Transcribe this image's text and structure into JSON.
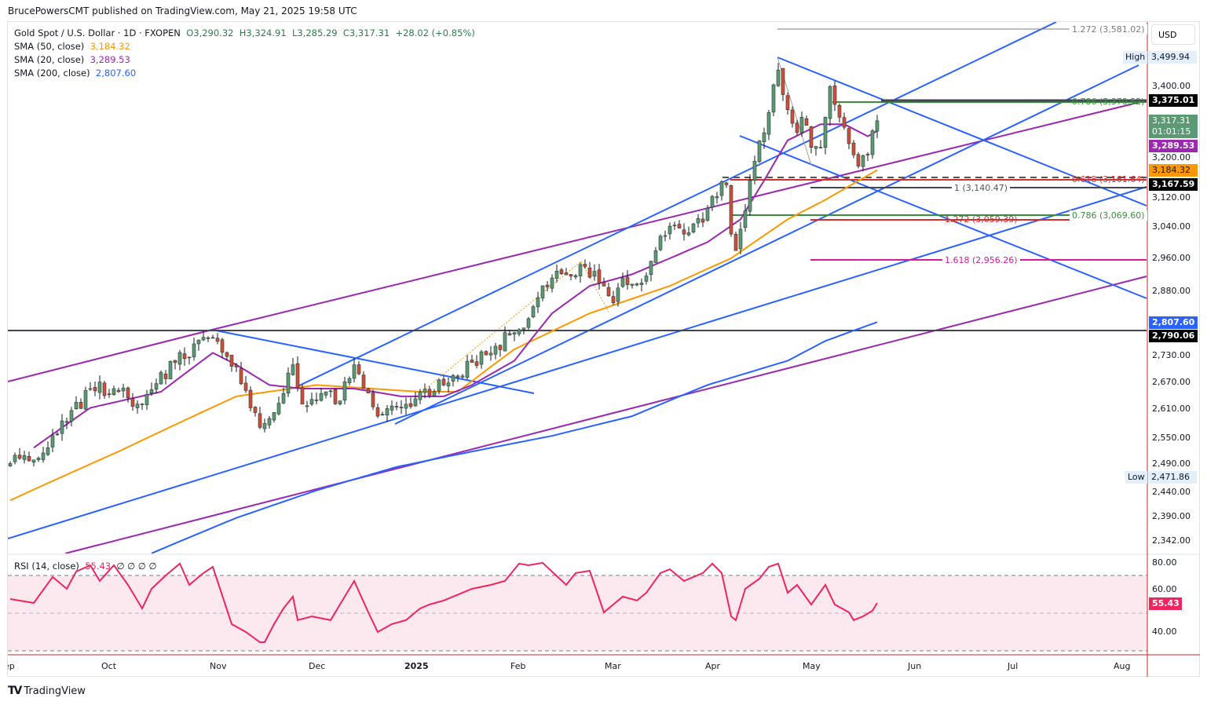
{
  "publisher": "BrucePowersCMT published on TradingView.com, May 21, 2025 19:58 UTC",
  "legend": {
    "symbol": "Gold Spot / U.S. Dollar · 1D · FXOPEN",
    "open": "O3,290.32",
    "high": "H3,324.91",
    "low": "L3,285.29",
    "close": "C3,317.31",
    "change": "+28.02 (+0.85%)",
    "sma50_label": "SMA (50, close)",
    "sma50_value": "3,184.32",
    "sma20_label": "SMA (20, close)",
    "sma20_value": "3,289.53",
    "sma200_label": "SMA (200, close)",
    "sma200_value": "2,807.60"
  },
  "rsi_legend": {
    "label": "RSI (14, close)",
    "value": "55.43",
    "extras": "∅ ∅ ∅ ∅"
  },
  "price_axis": {
    "currency": "USD",
    "ticks": [
      "3,400.00",
      "3,200.00",
      "3,120.00",
      "3,040.00",
      "2,960.00",
      "2,880.00",
      "2,730.00",
      "2,670.00",
      "2,610.00",
      "2,550.00",
      "2,490.00",
      "2,440.00",
      "2,390.00",
      "2,342.00"
    ],
    "high_label": "High",
    "high_value": "3,499.94",
    "low_label": "Low",
    "low_value": "2,471.86",
    "badges": {
      "line_3375": "3,375.01",
      "last_price": "3,317.31",
      "countdown": "01:01:15",
      "sma20": "3,289.53",
      "sma50": "3,184.32",
      "line_3167": "3,167.59",
      "sma200": "2,807.60",
      "line_2790": "2,790.06"
    }
  },
  "rsi_axis": {
    "ticks": [
      "80.00",
      "60.00",
      "40.00"
    ],
    "current": "55.43"
  },
  "date_axis": [
    "Sep",
    "Oct",
    "Nov",
    "Dec",
    "2025",
    "Feb",
    "Mar",
    "Apr",
    "May",
    "Jun",
    "Jul",
    "Aug"
  ],
  "fib_labels": {
    "f1": "1.272 (3,581.02)",
    "f2": "0.786 (3,370.52)",
    "f3": "0.618 (3,161.64)",
    "f4": "1 (3,140.47)",
    "f5": "0.786 (3,069.60)",
    "f6": "1.272 (3,059.39)",
    "f7": "1.618 (2,956.26)"
  },
  "branding": "TradingView",
  "colors": {
    "up": "#5b9a74",
    "down": "#d24c3a",
    "sma20": "#9c27b0",
    "sma50": "#ff9800",
    "sma200": "#2962ff",
    "rsi": "#f0245f"
  },
  "chart_data": {
    "type": "candlestick",
    "title": "Gold Spot / U.S. Dollar · 1D · FXOPEN",
    "scale": "log",
    "ylim": [
      2320,
      3620
    ],
    "x_note": "trading-day index from early Sep 2024 to May 21 2025",
    "close_anchors": [
      [
        0,
        2497
      ],
      [
        8,
        2530
      ],
      [
        17,
        2657
      ],
      [
        22,
        2657
      ],
      [
        27,
        2623
      ],
      [
        35,
        2715
      ],
      [
        43,
        2772
      ],
      [
        48,
        2705
      ],
      [
        51,
        2615
      ],
      [
        53,
        2573
      ],
      [
        56,
        2605
      ],
      [
        60,
        2710
      ],
      [
        62,
        2623
      ],
      [
        67,
        2650
      ],
      [
        70,
        2630
      ],
      [
        73,
        2710
      ],
      [
        75,
        2657
      ],
      [
        78,
        2597
      ],
      [
        83,
        2615
      ],
      [
        87,
        2650
      ],
      [
        92,
        2665
      ],
      [
        95,
        2685
      ],
      [
        98,
        2715
      ],
      [
        103,
        2752
      ],
      [
        108,
        2790
      ],
      [
        112,
        2865
      ],
      [
        115,
        2912
      ],
      [
        122,
        2940
      ],
      [
        125,
        2900
      ],
      [
        128,
        2853
      ],
      [
        130,
        2912
      ],
      [
        134,
        2900
      ],
      [
        137,
        2979
      ],
      [
        140,
        3040
      ],
      [
        143,
        3020
      ],
      [
        147,
        3050
      ],
      [
        149,
        3116
      ],
      [
        152,
        3146
      ],
      [
        153,
        3020
      ],
      [
        154,
        2979
      ],
      [
        156,
        3079
      ],
      [
        157,
        3157
      ],
      [
        158,
        3208
      ],
      [
        161,
        3340
      ],
      [
        163,
        3460
      ],
      [
        164,
        3390
      ],
      [
        165,
        3348
      ],
      [
        167,
        3285
      ],
      [
        168,
        3327
      ],
      [
        170,
        3245
      ],
      [
        172,
        3245
      ],
      [
        173,
        3327
      ],
      [
        174,
        3413
      ],
      [
        176,
        3327
      ],
      [
        178,
        3255
      ],
      [
        179,
        3225
      ],
      [
        180,
        3195
      ],
      [
        182,
        3225
      ],
      [
        183,
        3290
      ],
      [
        184,
        3317.31
      ]
    ],
    "sma20": [
      [
        5,
        2530
      ],
      [
        17,
        2615
      ],
      [
        32,
        2650
      ],
      [
        43,
        2737
      ],
      [
        48,
        2710
      ],
      [
        55,
        2665
      ],
      [
        62,
        2657
      ],
      [
        73,
        2657
      ],
      [
        83,
        2640
      ],
      [
        92,
        2640
      ],
      [
        98,
        2665
      ],
      [
        107,
        2719
      ],
      [
        115,
        2828
      ],
      [
        123,
        2893
      ],
      [
        132,
        2921
      ],
      [
        140,
        2960
      ],
      [
        148,
        3000
      ],
      [
        155,
        3057
      ],
      [
        160,
        3157
      ],
      [
        165,
        3264
      ],
      [
        172,
        3308
      ],
      [
        177,
        3308
      ],
      [
        182,
        3275
      ],
      [
        184,
        3289.53
      ]
    ],
    "sma50": [
      [
        0,
        2422
      ],
      [
        23,
        2522
      ],
      [
        48,
        2640
      ],
      [
        65,
        2665
      ],
      [
        87,
        2650
      ],
      [
        95,
        2650
      ],
      [
        107,
        2745
      ],
      [
        123,
        2828
      ],
      [
        140,
        2893
      ],
      [
        153,
        2960
      ],
      [
        165,
        3057
      ],
      [
        173,
        3107
      ],
      [
        184,
        3184.32
      ]
    ],
    "sma200": [
      [
        30,
        2318
      ],
      [
        48,
        2387
      ],
      [
        65,
        2442
      ],
      [
        82,
        2490
      ],
      [
        98,
        2522
      ],
      [
        115,
        2555
      ],
      [
        132,
        2597
      ],
      [
        148,
        2665
      ],
      [
        165,
        2719
      ],
      [
        173,
        2764
      ],
      [
        184,
        2807.6
      ]
    ],
    "horizontal_levels": [
      3581.02,
      3370.52,
      3375.01,
      3161.64,
      3167.59,
      3140.47,
      3069.6,
      3059.39,
      2956.26,
      2790.06
    ],
    "rsi": {
      "period": 14,
      "bands": [
        70,
        50,
        30
      ],
      "ylim": [
        25,
        85
      ],
      "points": [
        [
          0,
          57.5
        ],
        [
          5,
          55.4
        ],
        [
          9,
          69.2
        ],
        [
          12,
          62.9
        ],
        [
          14,
          72.1
        ],
        [
          17,
          75.4
        ],
        [
          19,
          67.1
        ],
        [
          22,
          75.4
        ],
        [
          25,
          65
        ],
        [
          28,
          52.5
        ],
        [
          30,
          62.9
        ],
        [
          33,
          70
        ],
        [
          36,
          76.3
        ],
        [
          38,
          65
        ],
        [
          41,
          71.3
        ],
        [
          43,
          74.6
        ],
        [
          47,
          44.2
        ],
        [
          50,
          40
        ],
        [
          53,
          34.6
        ],
        [
          54,
          34.6
        ],
        [
          56,
          44.2
        ],
        [
          58,
          52.5
        ],
        [
          60,
          58.8
        ],
        [
          61,
          46.3
        ],
        [
          64,
          48.3
        ],
        [
          68,
          46.3
        ],
        [
          71,
          58.8
        ],
        [
          73,
          67.1
        ],
        [
          76,
          50.4
        ],
        [
          78,
          40
        ],
        [
          81,
          44.2
        ],
        [
          84,
          46.3
        ],
        [
          87,
          52.5
        ],
        [
          89,
          54.6
        ],
        [
          92,
          56.7
        ],
        [
          94,
          58.8
        ],
        [
          98,
          62.9
        ],
        [
          102,
          65
        ],
        [
          105,
          67.1
        ],
        [
          108,
          76.3
        ],
        [
          110,
          75.4
        ],
        [
          113,
          76.7
        ],
        [
          118,
          65
        ],
        [
          120,
          71.3
        ],
        [
          123,
          72.5
        ],
        [
          126,
          50.4
        ],
        [
          130,
          58.8
        ],
        [
          133,
          56.7
        ],
        [
          135,
          60.8
        ],
        [
          138,
          71.3
        ],
        [
          140,
          73.3
        ],
        [
          143,
          67.1
        ],
        [
          147,
          71.3
        ],
        [
          149,
          76.3
        ],
        [
          151,
          71.3
        ],
        [
          153,
          48.3
        ],
        [
          154,
          46.3
        ],
        [
          156,
          62.9
        ],
        [
          159,
          68.3
        ],
        [
          161,
          74.6
        ],
        [
          163,
          76.3
        ],
        [
          165,
          60.8
        ],
        [
          167,
          65
        ],
        [
          170,
          54.6
        ],
        [
          173,
          65
        ],
        [
          175,
          54.6
        ],
        [
          178,
          50.4
        ],
        [
          179,
          46.3
        ],
        [
          181,
          48.3
        ],
        [
          183,
          51.3
        ],
        [
          184,
          55.43
        ]
      ]
    }
  }
}
